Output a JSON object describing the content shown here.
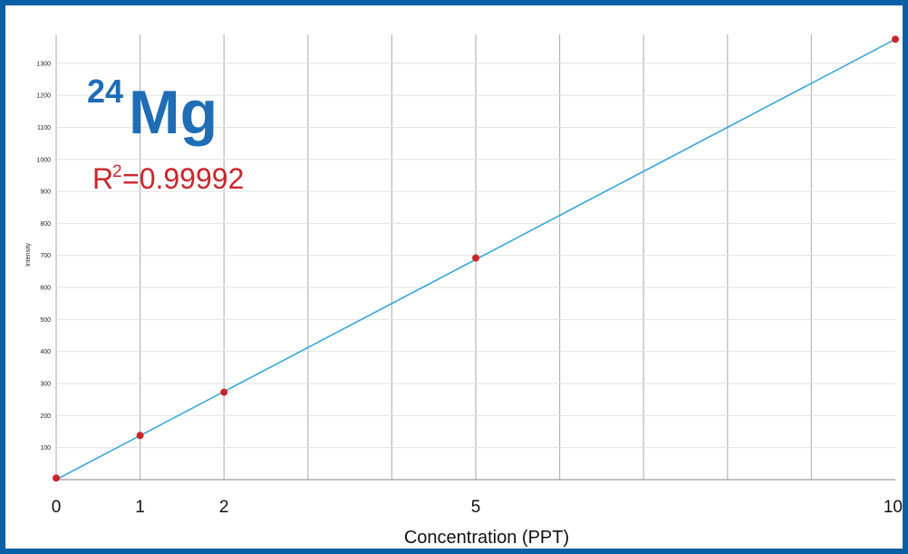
{
  "colors": {
    "frame": "#0b5fa5",
    "isotope": "#1e6db5",
    "r2": "#c9262c",
    "fit_line": "#3aa6d8",
    "points": "#c9262c",
    "grid": "#b8b8b8"
  },
  "chart_data": {
    "type": "scatter",
    "title": "",
    "isotope_mass": "24",
    "isotope_element": "Mg",
    "r2_prefix": "R",
    "r2_sup": "2",
    "r2_value": "=0.99992",
    "xlabel": "Concentration (PPT)",
    "ylabel": "Intensity",
    "xlim": [
      0,
      10
    ],
    "ylim": [
      0,
      1390
    ],
    "x_ticks": [
      {
        "value": 0,
        "label": "0"
      },
      {
        "value": 1,
        "label": "1"
      },
      {
        "value": 2,
        "label": "2"
      },
      {
        "value": 5,
        "label": "5"
      },
      {
        "value": 10,
        "label": "10"
      }
    ],
    "x_grid": [
      1,
      2,
      3,
      4,
      5,
      6,
      7,
      8,
      9
    ],
    "y_ticks": [
      100,
      200,
      300,
      400,
      500,
      600,
      700,
      800,
      900,
      1000,
      1100,
      1200,
      1300
    ],
    "grid": true,
    "series": [
      {
        "points": [
          {
            "x": 0,
            "y": 5
          },
          {
            "x": 1,
            "y": 138
          },
          {
            "x": 2,
            "y": 273
          },
          {
            "x": 5,
            "y": 692
          },
          {
            "x": 10,
            "y": 1375
          }
        ]
      }
    ],
    "fit_line": {
      "x0": 0,
      "y0": 0,
      "x1": 10,
      "y1": 1375
    }
  }
}
